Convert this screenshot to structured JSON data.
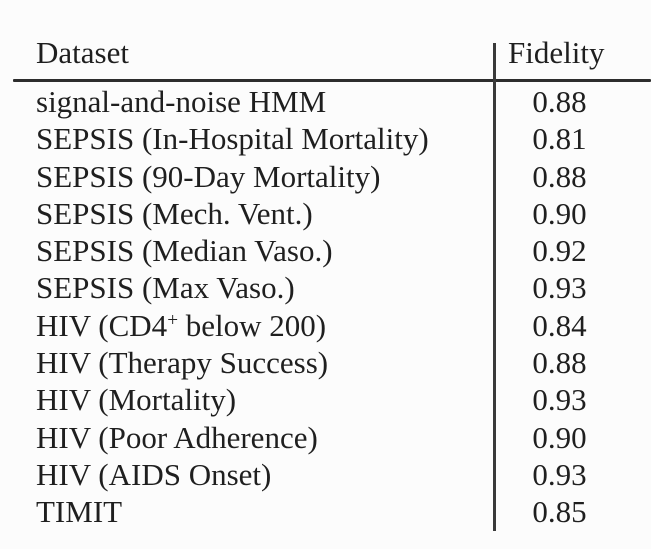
{
  "table": {
    "columns": [
      {
        "label": "Dataset"
      },
      {
        "label": "Fidelity"
      }
    ],
    "rows": [
      {
        "pre": "signal-and-noise HMM",
        "sup": "",
        "post": "",
        "fidelity": "0.88"
      },
      {
        "pre": "SEPSIS (In-Hospital Mortality)",
        "sup": "",
        "post": "",
        "fidelity": "0.81"
      },
      {
        "pre": "SEPSIS (90-Day Mortality)",
        "sup": "",
        "post": "",
        "fidelity": "0.88"
      },
      {
        "pre": "SEPSIS (Mech. Vent.)",
        "sup": "",
        "post": "",
        "fidelity": "0.90"
      },
      {
        "pre": "SEPSIS (Median Vaso.)",
        "sup": "",
        "post": "",
        "fidelity": "0.92"
      },
      {
        "pre": "SEPSIS (Max Vaso.)",
        "sup": "",
        "post": "",
        "fidelity": "0.93"
      },
      {
        "pre": "HIV (CD4",
        "sup": "+",
        "post": " below 200)",
        "fidelity": "0.84"
      },
      {
        "pre": "HIV (Therapy Success)",
        "sup": "",
        "post": "",
        "fidelity": "0.88"
      },
      {
        "pre": "HIV (Mortality)",
        "sup": "",
        "post": "",
        "fidelity": "0.93"
      },
      {
        "pre": "HIV (Poor Adherence)",
        "sup": "",
        "post": "",
        "fidelity": "0.90"
      },
      {
        "pre": "HIV (AIDS Onset)",
        "sup": "",
        "post": "",
        "fidelity": "0.93"
      },
      {
        "pre": "TIMIT",
        "sup": "",
        "post": "",
        "fidelity": "0.85"
      }
    ]
  },
  "colors": {
    "text": "#1f1f1f",
    "rule": "#2d2d2d",
    "background": "#fcfcfc"
  },
  "chart_data": {
    "type": "table",
    "columns": [
      "Dataset",
      "Fidelity"
    ],
    "rows": [
      [
        "signal-and-noise HMM",
        0.88
      ],
      [
        "SEPSIS (In-Hospital Mortality)",
        0.81
      ],
      [
        "SEPSIS (90-Day Mortality)",
        0.88
      ],
      [
        "SEPSIS (Mech. Vent.)",
        0.9
      ],
      [
        "SEPSIS (Median Vaso.)",
        0.92
      ],
      [
        "SEPSIS (Max Vaso.)",
        0.93
      ],
      [
        "HIV (CD4+ below 200)",
        0.84
      ],
      [
        "HIV (Therapy Success)",
        0.88
      ],
      [
        "HIV (Mortality)",
        0.93
      ],
      [
        "HIV (Poor Adherence)",
        0.9
      ],
      [
        "HIV (AIDS Onset)",
        0.93
      ],
      [
        "TIMIT",
        0.85
      ]
    ]
  }
}
